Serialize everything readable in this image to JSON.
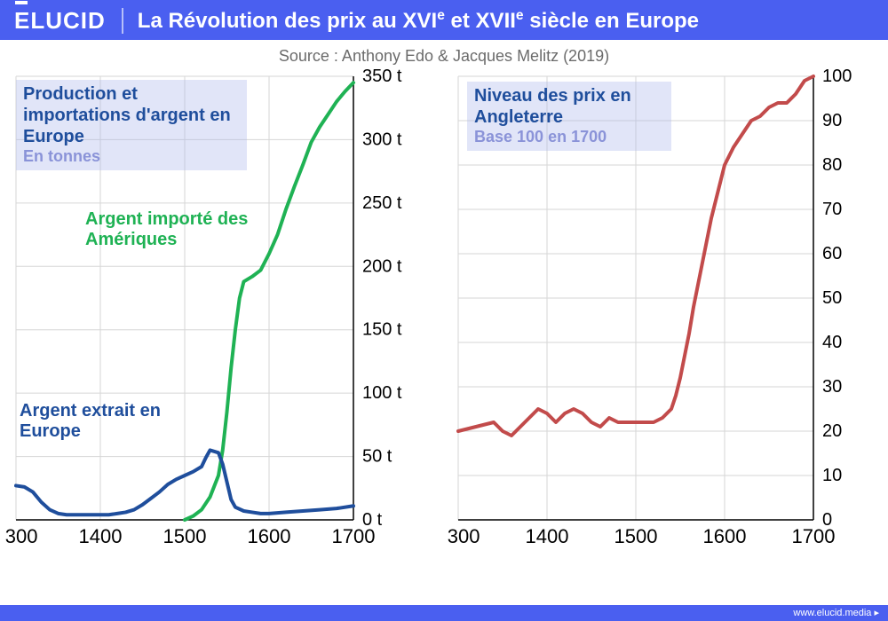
{
  "brand": "ELUCID",
  "title_html": "La Révolution des prix au XVI<sup>e</sup> et XVII<sup>e</sup> siècle en Europe",
  "source": "Source : Anthony Edo & Jacques Melitz (2019)",
  "footer_url": "www.elucid.media",
  "colors": {
    "header_bg": "#4a5ff0",
    "europe_line": "#1f4e9c",
    "americas_line": "#1fb254",
    "price_line": "#c24b4b",
    "grid": "#d6d6d6",
    "label_bg": "rgba(170,180,235,0.35)",
    "unit_text": "#8a93d8"
  },
  "chart_left": {
    "type": "line",
    "label_title": "Production et importations d'argent en Europe",
    "label_unit": "En tonnes",
    "series_europe_label": "Argent extrait en Europe",
    "series_americas_label": "Argent importé des Amériques",
    "xlim": [
      1300,
      1700
    ],
    "ylim": [
      0,
      350
    ],
    "xticks": [
      1300,
      1400,
      1500,
      1600,
      1700
    ],
    "yticks": [
      0,
      50,
      100,
      150,
      200,
      250,
      300,
      350
    ],
    "ytick_suffix": " t",
    "line_width": 4,
    "series_europe": [
      [
        1300,
        27
      ],
      [
        1310,
        26
      ],
      [
        1320,
        22
      ],
      [
        1330,
        14
      ],
      [
        1340,
        8
      ],
      [
        1350,
        5
      ],
      [
        1360,
        4
      ],
      [
        1370,
        4
      ],
      [
        1380,
        4
      ],
      [
        1390,
        4
      ],
      [
        1400,
        4
      ],
      [
        1410,
        4
      ],
      [
        1420,
        5
      ],
      [
        1430,
        6
      ],
      [
        1440,
        8
      ],
      [
        1450,
        12
      ],
      [
        1460,
        17
      ],
      [
        1470,
        22
      ],
      [
        1480,
        28
      ],
      [
        1490,
        32
      ],
      [
        1500,
        35
      ],
      [
        1510,
        38
      ],
      [
        1520,
        42
      ],
      [
        1525,
        49
      ],
      [
        1530,
        55
      ],
      [
        1540,
        53
      ],
      [
        1545,
        44
      ],
      [
        1550,
        30
      ],
      [
        1555,
        16
      ],
      [
        1560,
        10
      ],
      [
        1570,
        7
      ],
      [
        1580,
        6
      ],
      [
        1590,
        5
      ],
      [
        1600,
        5
      ],
      [
        1620,
        6
      ],
      [
        1640,
        7
      ],
      [
        1660,
        8
      ],
      [
        1680,
        9
      ],
      [
        1700,
        11
      ]
    ],
    "series_americas": [
      [
        1500,
        0
      ],
      [
        1510,
        3
      ],
      [
        1520,
        8
      ],
      [
        1530,
        18
      ],
      [
        1540,
        35
      ],
      [
        1545,
        55
      ],
      [
        1550,
        85
      ],
      [
        1555,
        120
      ],
      [
        1560,
        150
      ],
      [
        1565,
        175
      ],
      [
        1570,
        188
      ],
      [
        1580,
        192
      ],
      [
        1590,
        197
      ],
      [
        1600,
        210
      ],
      [
        1610,
        225
      ],
      [
        1620,
        245
      ],
      [
        1630,
        263
      ],
      [
        1640,
        280
      ],
      [
        1650,
        298
      ],
      [
        1660,
        310
      ],
      [
        1670,
        320
      ],
      [
        1680,
        330
      ],
      [
        1690,
        338
      ],
      [
        1700,
        345
      ]
    ]
  },
  "chart_right": {
    "type": "line",
    "label_title": "Niveau des prix en Angleterre",
    "label_unit": "Base 100 en 1700",
    "xlim": [
      1300,
      1700
    ],
    "ylim": [
      0,
      100
    ],
    "xticks": [
      1300,
      1400,
      1500,
      1600,
      1700
    ],
    "yticks": [
      0,
      10,
      20,
      30,
      40,
      50,
      60,
      70,
      80,
      90,
      100
    ],
    "line_width": 4,
    "series_price": [
      [
        1300,
        20
      ],
      [
        1320,
        21
      ],
      [
        1340,
        22
      ],
      [
        1350,
        20
      ],
      [
        1360,
        19
      ],
      [
        1370,
        21
      ],
      [
        1380,
        23
      ],
      [
        1390,
        25
      ],
      [
        1400,
        24
      ],
      [
        1410,
        22
      ],
      [
        1420,
        24
      ],
      [
        1430,
        25
      ],
      [
        1440,
        24
      ],
      [
        1450,
        22
      ],
      [
        1460,
        21
      ],
      [
        1470,
        23
      ],
      [
        1480,
        22
      ],
      [
        1490,
        22
      ],
      [
        1500,
        22
      ],
      [
        1510,
        22
      ],
      [
        1520,
        22
      ],
      [
        1530,
        23
      ],
      [
        1540,
        25
      ],
      [
        1545,
        28
      ],
      [
        1550,
        32
      ],
      [
        1555,
        37
      ],
      [
        1560,
        42
      ],
      [
        1565,
        48
      ],
      [
        1570,
        53
      ],
      [
        1575,
        58
      ],
      [
        1580,
        63
      ],
      [
        1585,
        68
      ],
      [
        1590,
        72
      ],
      [
        1595,
        76
      ],
      [
        1600,
        80
      ],
      [
        1610,
        84
      ],
      [
        1620,
        87
      ],
      [
        1630,
        90
      ],
      [
        1640,
        91
      ],
      [
        1650,
        93
      ],
      [
        1660,
        94
      ],
      [
        1670,
        94
      ],
      [
        1680,
        96
      ],
      [
        1690,
        99
      ],
      [
        1700,
        100
      ]
    ]
  }
}
